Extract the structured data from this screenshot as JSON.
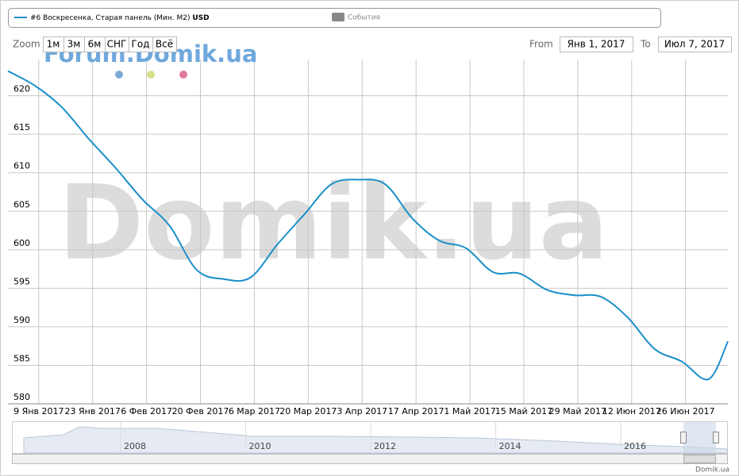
{
  "chart_data": {
    "type": "line",
    "currency": "USD",
    "events_label": "События",
    "x": [
      "2017-01-01",
      "2017-01-08",
      "2017-01-15",
      "2017-01-22",
      "2017-01-29",
      "2017-02-05",
      "2017-02-12",
      "2017-02-19",
      "2017-02-26",
      "2017-03-05",
      "2017-03-12",
      "2017-03-19",
      "2017-03-26",
      "2017-04-02",
      "2017-04-09",
      "2017-04-16",
      "2017-04-23",
      "2017-04-30",
      "2017-05-07",
      "2017-05-14",
      "2017-05-21",
      "2017-05-28",
      "2017-06-04",
      "2017-06-11",
      "2017-06-18",
      "2017-06-25",
      "2017-07-02",
      "2017-07-07"
    ],
    "series": [
      {
        "name": "#6 Воскресенка, Старая панель (Мин. М2)",
        "color": "#1a8fc9",
        "values": [
          623.2,
          621.3,
          618.5,
          614.4,
          610.6,
          606.5,
          603.1,
          597.4,
          596.2,
          596.4,
          600.7,
          604.6,
          608.5,
          609.1,
          608.5,
          604.1,
          601.2,
          600.2,
          597.1,
          596.9,
          594.8,
          594.1,
          593.9,
          591.2,
          587.1,
          585.5,
          583.2,
          588.1
        ]
      }
    ],
    "xlim": [
      "2017-01-01",
      "2017-07-07"
    ],
    "xticks": [
      {
        "value": "2017-01-09",
        "label": "9 Янв 2017"
      },
      {
        "value": "2017-01-23",
        "label": "23 Янв 2017"
      },
      {
        "value": "2017-02-06",
        "label": "6 Фев 2017"
      },
      {
        "value": "2017-02-20",
        "label": "20 Фев 2017"
      },
      {
        "value": "2017-03-06",
        "label": "6 Мар 2017"
      },
      {
        "value": "2017-03-20",
        "label": "20 Мар 2017"
      },
      {
        "value": "2017-04-03",
        "label": "3 Апр 2017"
      },
      {
        "value": "2017-04-17",
        "label": "17 Апр 2017"
      },
      {
        "value": "2017-05-01",
        "label": "1 Май 2017"
      },
      {
        "value": "2017-05-15",
        "label": "15 Май 2017"
      },
      {
        "value": "2017-05-29",
        "label": "29 Май 2017"
      },
      {
        "value": "2017-06-12",
        "label": "12 Июн 2017"
      },
      {
        "value": "2017-06-26",
        "label": "26 Июн 2017"
      }
    ],
    "ylim": [
      580,
      624.7
    ],
    "yticks": [
      580,
      585,
      590,
      595,
      600,
      605,
      610,
      615,
      620
    ],
    "grid": true
  },
  "controls": {
    "zoom_label": "Zoom",
    "zoom_buttons": [
      "1м",
      "3м",
      "6м",
      "СНГ",
      "Год",
      "Всё"
    ],
    "from_label": "From",
    "from": "Янв 1, 2017",
    "to_label": "To",
    "to": "Июл 7, 2017"
  },
  "navigator": {
    "years": [
      "2008",
      "2010",
      "2012",
      "2014",
      "2016"
    ]
  },
  "watermarks": [
    "Forum.Domik.ua",
    "Domik.ua"
  ],
  "credit": "Domik.ua"
}
